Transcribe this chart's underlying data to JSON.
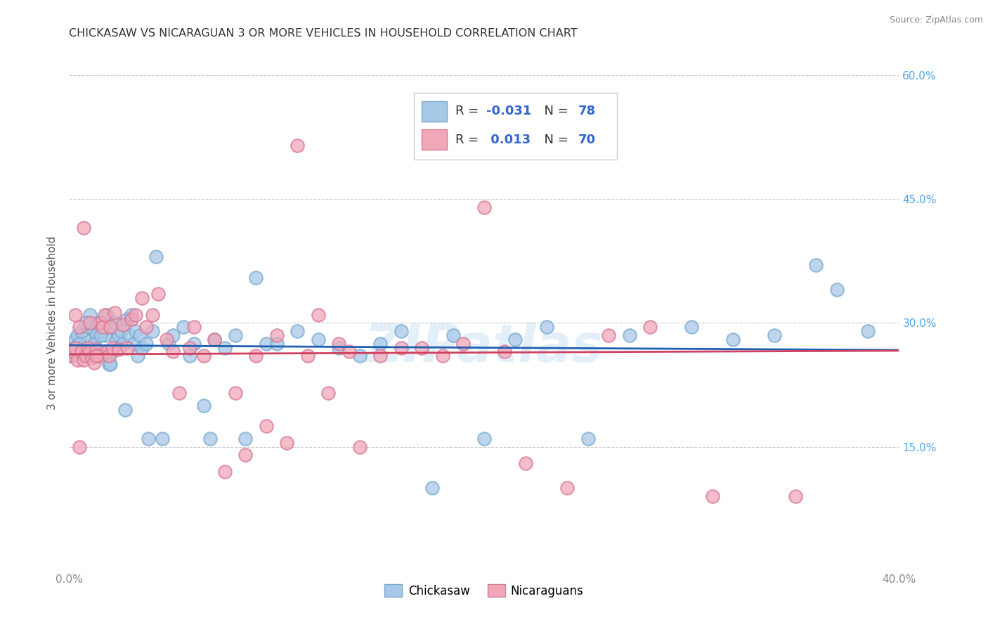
{
  "title": "CHICKASAW VS NICARAGUAN 3 OR MORE VEHICLES IN HOUSEHOLD CORRELATION CHART",
  "source": "Source: ZipAtlas.com",
  "ylabel": "3 or more Vehicles in Household",
  "x_min": 0.0,
  "x_max": 0.4,
  "y_min": 0.0,
  "y_max": 0.6,
  "x_ticks": [
    0.0,
    0.05,
    0.1,
    0.15,
    0.2,
    0.25,
    0.3,
    0.35,
    0.4
  ],
  "y_ticks": [
    0.0,
    0.15,
    0.3,
    0.45,
    0.6
  ],
  "chickasaw_R": -0.031,
  "chickasaw_N": 78,
  "nicaraguan_R": 0.013,
  "nicaraguan_N": 70,
  "chickasaw_color": "#a8c8e8",
  "nicaraguan_color": "#f0a8b8",
  "chickasaw_edge_color": "#7aaace",
  "nicaraguan_edge_color": "#d87898",
  "chickasaw_line_color": "#2060b0",
  "nicaraguan_line_color": "#d04060",
  "watermark": "ZIPatlas",
  "tick_color": "#888888",
  "right_tick_color": "#4da6e8",
  "grid_color": "#cccccc",
  "title_color": "#333333",
  "source_color": "#888888",
  "chickasaw_x": [
    0.001,
    0.002,
    0.003,
    0.004,
    0.005,
    0.006,
    0.007,
    0.008,
    0.009,
    0.01,
    0.011,
    0.012,
    0.013,
    0.014,
    0.015,
    0.016,
    0.017,
    0.018,
    0.019,
    0.02,
    0.021,
    0.022,
    0.023,
    0.024,
    0.025,
    0.026,
    0.027,
    0.028,
    0.029,
    0.03,
    0.031,
    0.032,
    0.033,
    0.034,
    0.035,
    0.037,
    0.038,
    0.04,
    0.042,
    0.045,
    0.048,
    0.05,
    0.055,
    0.058,
    0.06,
    0.065,
    0.068,
    0.07,
    0.075,
    0.08,
    0.085,
    0.09,
    0.095,
    0.1,
    0.11,
    0.12,
    0.13,
    0.14,
    0.15,
    0.16,
    0.175,
    0.185,
    0.2,
    0.215,
    0.23,
    0.25,
    0.27,
    0.3,
    0.32,
    0.34,
    0.36,
    0.37,
    0.385,
    0.008,
    0.01,
    0.012,
    0.015,
    0.02
  ],
  "chickasaw_y": [
    0.26,
    0.27,
    0.28,
    0.285,
    0.275,
    0.29,
    0.265,
    0.27,
    0.295,
    0.31,
    0.28,
    0.29,
    0.285,
    0.3,
    0.265,
    0.29,
    0.285,
    0.31,
    0.25,
    0.295,
    0.265,
    0.3,
    0.28,
    0.285,
    0.29,
    0.275,
    0.195,
    0.305,
    0.285,
    0.31,
    0.275,
    0.29,
    0.26,
    0.285,
    0.27,
    0.275,
    0.16,
    0.29,
    0.38,
    0.16,
    0.275,
    0.285,
    0.295,
    0.26,
    0.275,
    0.2,
    0.16,
    0.28,
    0.27,
    0.285,
    0.16,
    0.355,
    0.275,
    0.275,
    0.29,
    0.28,
    0.27,
    0.26,
    0.275,
    0.29,
    0.1,
    0.285,
    0.16,
    0.28,
    0.295,
    0.16,
    0.285,
    0.295,
    0.28,
    0.285,
    0.37,
    0.34,
    0.29,
    0.3,
    0.26,
    0.275,
    0.285,
    0.25
  ],
  "nicaraguan_x": [
    0.001,
    0.002,
    0.003,
    0.004,
    0.005,
    0.006,
    0.007,
    0.008,
    0.009,
    0.01,
    0.011,
    0.012,
    0.013,
    0.014,
    0.015,
    0.016,
    0.017,
    0.018,
    0.019,
    0.02,
    0.021,
    0.022,
    0.024,
    0.026,
    0.028,
    0.03,
    0.032,
    0.035,
    0.037,
    0.04,
    0.043,
    0.047,
    0.05,
    0.053,
    0.058,
    0.06,
    0.065,
    0.07,
    0.075,
    0.08,
    0.085,
    0.09,
    0.095,
    0.1,
    0.105,
    0.11,
    0.115,
    0.12,
    0.125,
    0.13,
    0.135,
    0.14,
    0.15,
    0.16,
    0.17,
    0.18,
    0.19,
    0.2,
    0.21,
    0.22,
    0.24,
    0.26,
    0.28,
    0.31,
    0.35,
    0.003,
    0.005,
    0.007,
    0.01,
    0.013
  ],
  "nicaraguan_y": [
    0.26,
    0.265,
    0.27,
    0.255,
    0.15,
    0.265,
    0.255,
    0.26,
    0.27,
    0.265,
    0.258,
    0.252,
    0.268,
    0.26,
    0.3,
    0.295,
    0.31,
    0.265,
    0.26,
    0.295,
    0.27,
    0.312,
    0.268,
    0.298,
    0.27,
    0.305,
    0.31,
    0.33,
    0.295,
    0.31,
    0.335,
    0.28,
    0.265,
    0.215,
    0.27,
    0.295,
    0.26,
    0.28,
    0.12,
    0.215,
    0.14,
    0.26,
    0.175,
    0.285,
    0.155,
    0.515,
    0.26,
    0.31,
    0.215,
    0.275,
    0.265,
    0.15,
    0.26,
    0.27,
    0.27,
    0.26,
    0.275,
    0.44,
    0.265,
    0.13,
    0.1,
    0.285,
    0.295,
    0.09,
    0.09,
    0.31,
    0.295,
    0.415,
    0.3,
    0.26
  ]
}
